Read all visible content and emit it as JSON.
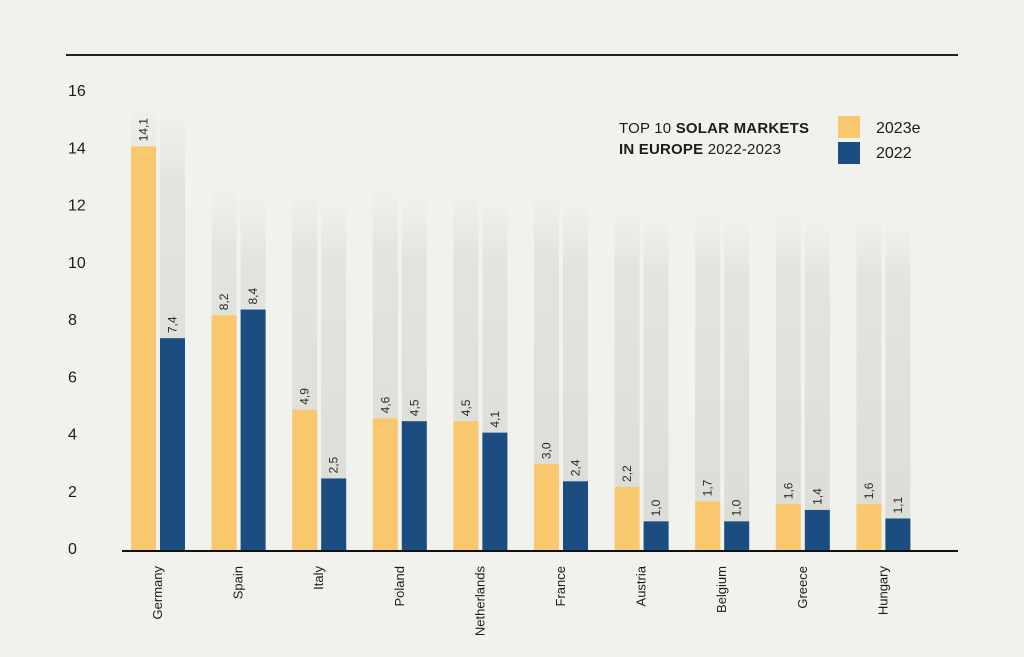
{
  "chart_data": {
    "type": "bar",
    "title_line1_prefix": "TOP 10 ",
    "title_line1_bold": "SOLAR MARKETS",
    "title_line2_bold": "IN EUROPE",
    "title_line2_suffix": " 2022-2023",
    "categories": [
      "Germany",
      "Spain",
      "Italy",
      "Poland",
      "Netherlands",
      "France",
      "Austria",
      "Belgium",
      "Greece",
      "Hungary"
    ],
    "series": [
      {
        "name": "2023e",
        "color": "#f9c86e",
        "values": [
          14.1,
          8.2,
          4.9,
          4.6,
          4.5,
          3.0,
          2.2,
          1.7,
          1.6,
          1.6
        ],
        "labels": [
          "14,1",
          "8,2",
          "4,9",
          "4,6",
          "4,5",
          "3,0",
          "2,2",
          "1,7",
          "1,6",
          "1,6"
        ]
      },
      {
        "name": "2022",
        "color": "#1b4d80",
        "values": [
          7.4,
          8.4,
          2.5,
          4.5,
          4.1,
          2.4,
          1.0,
          1.0,
          1.4,
          1.1
        ],
        "labels": [
          "7,4",
          "8,4",
          "2,5",
          "4,5",
          "4,1",
          "2,4",
          "1,0",
          "1,0",
          "1,4",
          "1,1"
        ]
      }
    ],
    "yticks": [
      "0",
      "2",
      "4",
      "6",
      "8",
      "10",
      "12",
      "14",
      "16"
    ],
    "ylim": [
      0,
      16
    ],
    "xlabel": "",
    "ylabel": "",
    "legend_position": "top-right",
    "grid": false
  }
}
